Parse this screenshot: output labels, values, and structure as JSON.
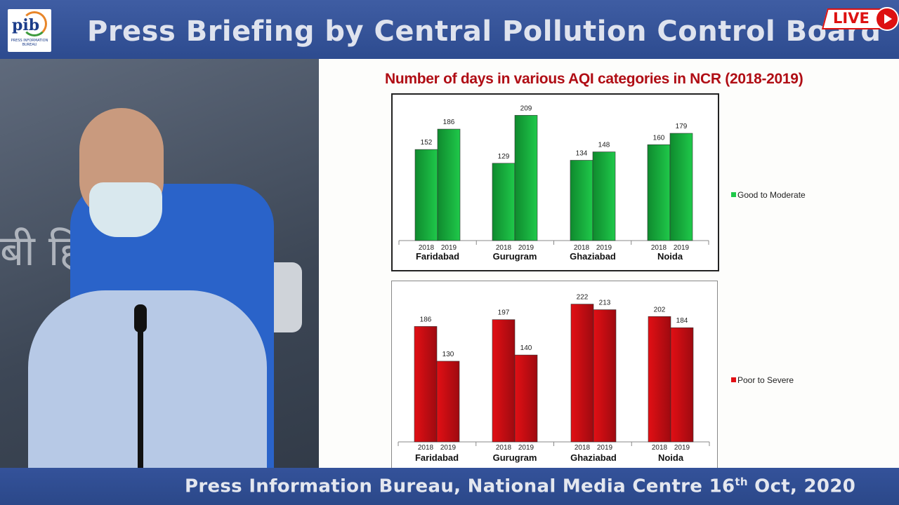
{
  "header": {
    "logo_text": "pib",
    "logo_subtext": "PRESS INFORMATION BUREAU",
    "title": "Press Briefing by Central Pollution Control Board",
    "live_label": "LIVE"
  },
  "video": {
    "wall_text": "बी हिं"
  },
  "footer": {
    "text_before": "Press Information Bureau, National Media Centre  16",
    "superscript": "th",
    "text_after": " Oct, 2020"
  },
  "colors": {
    "good": "#1fc94a",
    "good_dark": "#0f8a2e",
    "poor": "#e20f14",
    "poor_dark": "#9e0a10",
    "title_red": "#b00d14"
  },
  "chart_data": [
    {
      "type": "bar",
      "title": "Number of days in various AQI categories in NCR (2018-2019)",
      "categories": [
        "Faridabad",
        "Gurugram",
        "Ghaziabad",
        "Noida"
      ],
      "sub_categories": [
        "2018",
        "2019"
      ],
      "series": [
        {
          "name": "Good to Moderate",
          "values": [
            [
              152,
              186
            ],
            [
              129,
              209
            ],
            [
              134,
              148
            ],
            [
              160,
              179
            ]
          ]
        }
      ],
      "legend": "right",
      "ylim": [
        0,
        230
      ],
      "grid": false
    },
    {
      "type": "bar",
      "categories": [
        "Faridabad",
        "Gurugram",
        "Ghaziabad",
        "Noida"
      ],
      "sub_categories": [
        "2018",
        "2019"
      ],
      "series": [
        {
          "name": "Poor to Severe",
          "values": [
            [
              186,
              130
            ],
            [
              197,
              140
            ],
            [
              222,
              213
            ],
            [
              202,
              184
            ]
          ]
        }
      ],
      "legend": "right",
      "ylim": [
        0,
        240
      ],
      "grid": false
    }
  ]
}
